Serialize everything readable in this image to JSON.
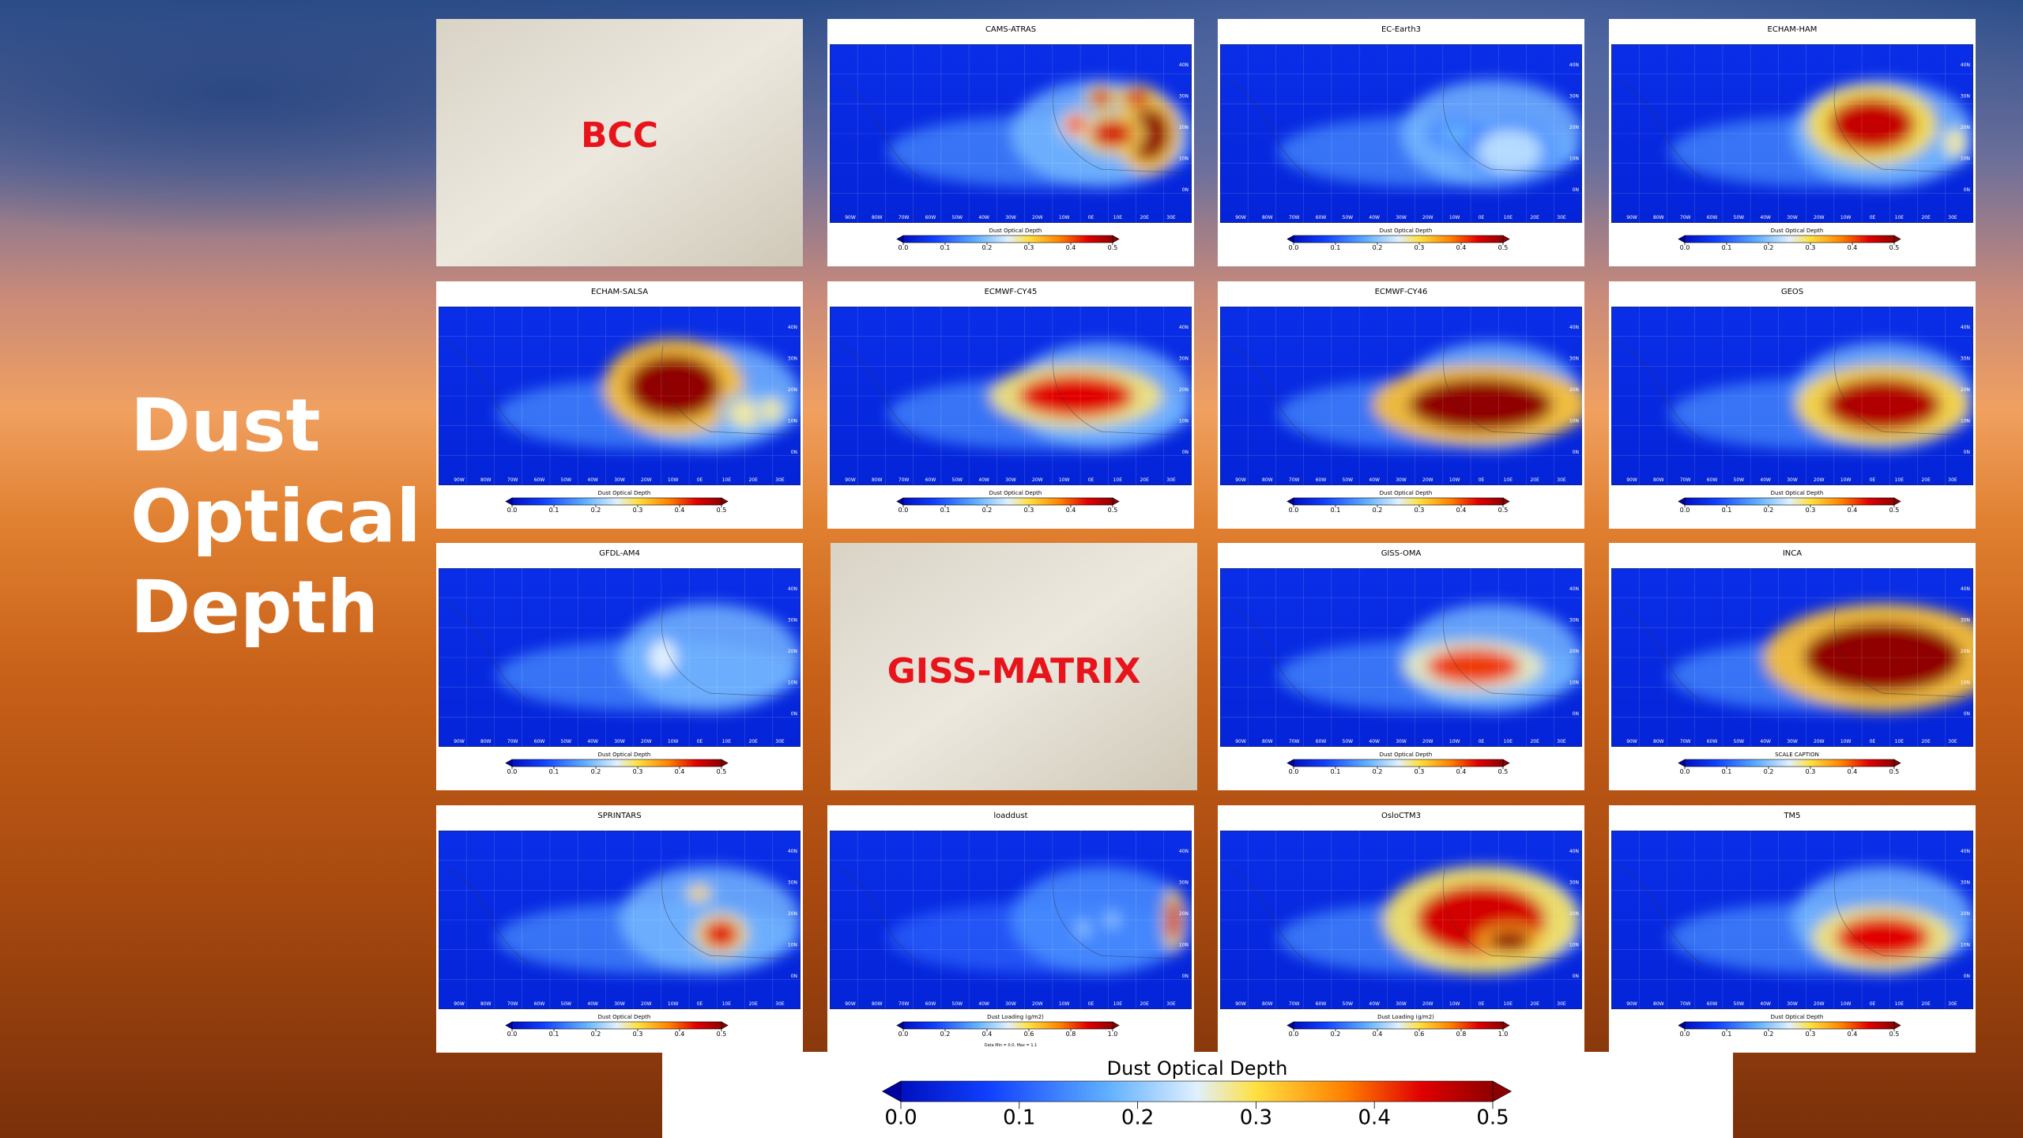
{
  "slide": {
    "title_lines": [
      "Dust",
      "Optical",
      "Depth"
    ]
  },
  "map_axes": {
    "lon_labels": [
      "90W",
      "80W",
      "70W",
      "60W",
      "50W",
      "40W",
      "30W",
      "20W",
      "10W",
      "0E",
      "10E",
      "20E",
      "30E"
    ],
    "lat_labels": [
      "40N",
      "30N",
      "20N",
      "10N",
      "0N"
    ]
  },
  "panels": [
    {
      "title": "BCC",
      "placeholder": true
    },
    {
      "title": "CAMS-ATRAS",
      "caption": "Dust Optical Depth",
      "ticks": [
        "0.0",
        "0.1",
        "0.2",
        "0.3",
        "0.4",
        "0.5"
      ]
    },
    {
      "title": "EC-Earth3",
      "caption": "Dust Optical Depth",
      "ticks": [
        "0.0",
        "0.1",
        "0.2",
        "0.3",
        "0.4",
        "0.5"
      ]
    },
    {
      "title": "ECHAM-HAM",
      "caption": "Dust Optical Depth",
      "ticks": [
        "0.0",
        "0.1",
        "0.2",
        "0.3",
        "0.4",
        "0.5"
      ]
    },
    {
      "title": "ECHAM-SALSA",
      "caption": "Dust Optical Depth",
      "ticks": [
        "0.0",
        "0.1",
        "0.2",
        "0.3",
        "0.4",
        "0.5"
      ]
    },
    {
      "title": "ECMWF-CY45",
      "caption": "Dust Optical Depth",
      "ticks": [
        "0.0",
        "0.1",
        "0.2",
        "0.3",
        "0.4",
        "0.5"
      ]
    },
    {
      "title": "ECMWF-CY46",
      "caption": "Dust Optical Depth",
      "ticks": [
        "0.0",
        "0.1",
        "0.2",
        "0.3",
        "0.4",
        "0.5"
      ]
    },
    {
      "title": "GEOS",
      "caption": "Dust Optical Depth",
      "ticks": [
        "0.0",
        "0.1",
        "0.2",
        "0.3",
        "0.4",
        "0.5"
      ]
    },
    {
      "title": "GFDL-AM4",
      "caption": "Dust Optical Depth",
      "ticks": [
        "0.0",
        "0.1",
        "0.2",
        "0.3",
        "0.4",
        "0.5"
      ]
    },
    {
      "title": "GISS-MATRIX",
      "placeholder": true
    },
    {
      "title": "GISS-OMA",
      "caption": "Dust Optical Depth",
      "ticks": [
        "0.0",
        "0.1",
        "0.2",
        "0.3",
        "0.4",
        "0.5"
      ]
    },
    {
      "title": "INCA",
      "caption": "SCALE CAPTION",
      "ticks": [
        "0.0",
        "0.1",
        "0.2",
        "0.3",
        "0.4",
        "0.5"
      ]
    },
    {
      "title": "SPRINTARS",
      "caption": "Dust Optical Depth",
      "ticks": [
        "0.0",
        "0.1",
        "0.2",
        "0.3",
        "0.4",
        "0.5"
      ]
    },
    {
      "title": "loaddust",
      "caption": "Dust Loading (g/m2)",
      "ticks": [
        "0.0",
        "0.2",
        "0.4",
        "0.6",
        "0.8",
        "1.0"
      ],
      "note": "Data Min = 0.0, Max = 1.1"
    },
    {
      "title": "OsloCTM3",
      "caption": "Dust Loading (g/m2)",
      "ticks": [
        "0.0",
        "0.2",
        "0.4",
        "0.6",
        "0.8",
        "1.0"
      ]
    },
    {
      "title": "TM5",
      "caption": "Dust Optical Depth",
      "ticks": [
        "0.0",
        "0.1",
        "0.2",
        "0.3",
        "0.4",
        "0.5"
      ]
    }
  ],
  "main_colorbar": {
    "caption": "Dust Optical Depth",
    "ticks": [
      "0.0",
      "0.1",
      "0.2",
      "0.3",
      "0.4",
      "0.5"
    ]
  }
}
